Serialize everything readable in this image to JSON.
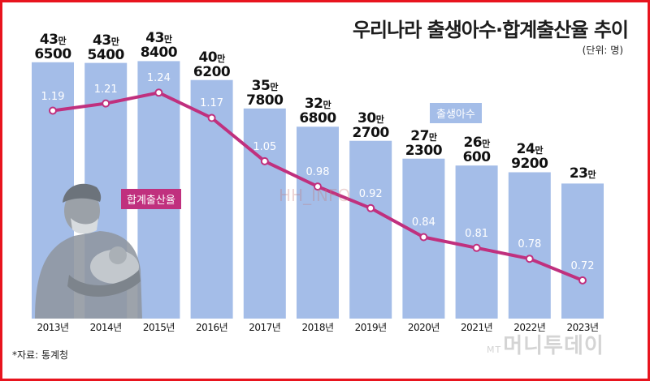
{
  "header": {
    "title": "우리나라 출생아수·합계출산율 추이",
    "unit": "(단위: 명)"
  },
  "footer": {
    "source": "*자료: 통계청",
    "watermark_prefix": "MT",
    "watermark": "머니투데이"
  },
  "watermark_center": "HH_INFO",
  "legend": {
    "bars": "출생아수",
    "line": "합계출산율"
  },
  "colors": {
    "bar": "#a4bde8",
    "line": "#c0307e",
    "frame": "#e8141e"
  },
  "illustration": "nurse-holding-baby",
  "chart_data": {
    "type": "bar",
    "title": "우리나라 출생아수·합계출산율 추이",
    "categories": [
      "2013년",
      "2014년",
      "2015년",
      "2016년",
      "2017년",
      "2018년",
      "2019년",
      "2020년",
      "2021년",
      "2022년",
      "2023년"
    ],
    "series": [
      {
        "name": "출생아수",
        "type": "bar",
        "values": [
          436500,
          435400,
          438400,
          406200,
          357800,
          326800,
          302700,
          272300,
          260600,
          249200,
          230000
        ],
        "labels": [
          {
            "top": "43만",
            "bottom": "6500"
          },
          {
            "top": "43만",
            "bottom": "5400"
          },
          {
            "top": "43만",
            "bottom": "8400"
          },
          {
            "top": "40만",
            "bottom": "6200"
          },
          {
            "top": "35만",
            "bottom": "7800"
          },
          {
            "top": "32만",
            "bottom": "6800"
          },
          {
            "top": "30만",
            "bottom": "2700"
          },
          {
            "top": "27만",
            "bottom": "2300"
          },
          {
            "top": "26만",
            "bottom": "600"
          },
          {
            "top": "24만",
            "bottom": "9200"
          },
          {
            "top": "23만",
            "bottom": ""
          }
        ]
      },
      {
        "name": "합계출산율",
        "type": "line",
        "values": [
          1.19,
          1.21,
          1.24,
          1.17,
          1.05,
          0.98,
          0.92,
          0.84,
          0.81,
          0.78,
          0.72
        ],
        "labels": [
          "1.19",
          "1.21",
          "1.24",
          "1.17",
          "1.05",
          "0.98",
          "0.92",
          "0.84",
          "0.81",
          "0.78",
          "0.72"
        ]
      }
    ],
    "xlabel": "",
    "ylabel": "",
    "ylim": [
      0,
      450000
    ],
    "y2lim": [
      0.3,
      1.4
    ]
  }
}
